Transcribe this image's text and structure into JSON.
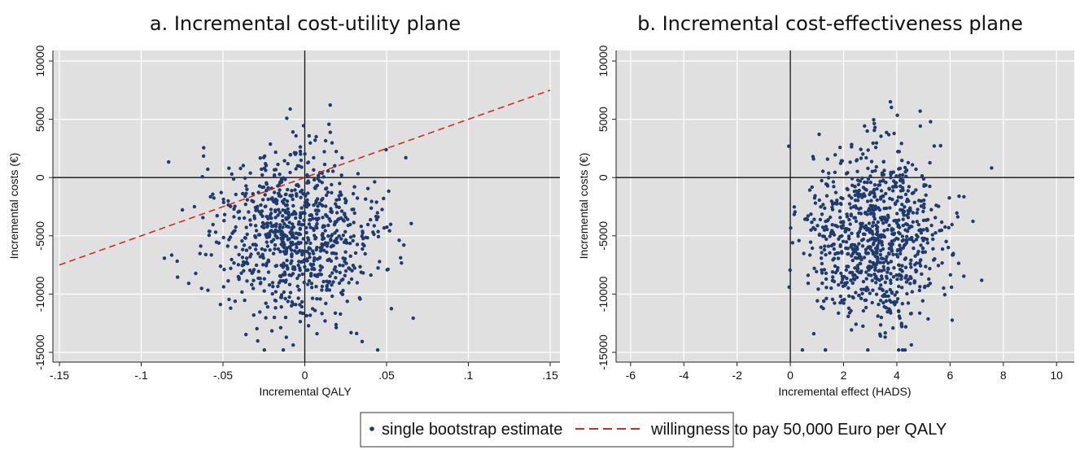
{
  "chart_data": [
    {
      "type": "scatter",
      "title": "a. Incremental cost-utility plane",
      "xlabel": "Incremental QALY",
      "ylabel": "Incremental costs (€)",
      "xlim": [
        -0.15,
        0.15
      ],
      "ylim": [
        -15000,
        10000
      ],
      "xticks": [
        -0.15,
        -0.1,
        -0.05,
        0,
        0.05,
        0.1,
        0.15
      ],
      "xtick_labels": [
        "-.15",
        "-.1",
        "-.05",
        "0",
        ".05",
        ".1",
        ".15"
      ],
      "yticks": [
        -15000,
        -10000,
        -5000,
        0,
        5000,
        10000
      ],
      "ytick_labels": [
        "-15000",
        "-10000",
        "-5000",
        "0",
        "5000",
        "10000"
      ],
      "grid": true,
      "series": [
        {
          "name": "single bootstrap estimate",
          "kind": "points",
          "color": "#1f3b6e",
          "n": 900,
          "distribution": {
            "x_mean": -0.006,
            "x_sd": 0.025,
            "y_mean": -5000,
            "y_sd": 3700
          }
        },
        {
          "name": "willingness to pay 50,000 Euro per QALY",
          "kind": "line",
          "color": "#d42a20",
          "points": [
            [
              -0.15,
              -7500
            ],
            [
              0.15,
              7500
            ]
          ]
        }
      ]
    },
    {
      "type": "scatter",
      "title": "b. Incremental cost-effectiveness plane",
      "xlabel": "Incremental effect (HADS)",
      "ylabel": "Incremental costs (€)",
      "xlim": [
        -6.3,
        10.3
      ],
      "ylim": [
        -15000,
        10000
      ],
      "xticks": [
        -6,
        -4,
        -2,
        0,
        2,
        4,
        6,
        8,
        10
      ],
      "xtick_labels": [
        "-6",
        "-4",
        "-2",
        "0",
        "2",
        "4",
        "6",
        "8",
        "10"
      ],
      "yticks": [
        -15000,
        -10000,
        -5000,
        0,
        5000,
        10000
      ],
      "ytick_labels": [
        "-15000",
        "-10000",
        "-5000",
        "0",
        "5000",
        "10000"
      ],
      "grid": true,
      "series": [
        {
          "name": "single bootstrap estimate",
          "kind": "points",
          "color": "#1f3b6e",
          "n": 900,
          "distribution": {
            "x_mean": 3.2,
            "x_sd": 1.3,
            "y_mean": -5000,
            "y_sd": 3700
          }
        }
      ]
    }
  ],
  "legend": {
    "placement": "bottom-center",
    "items": [
      {
        "label": "single bootstrap estimate",
        "marker": "point",
        "color": "#1f3b6e"
      },
      {
        "label": "willingness to pay 50,000 Euro per QALY",
        "marker": "dashed-line",
        "color": "#d42a20"
      }
    ]
  },
  "colors": {
    "plot_background": "#e0e0e0",
    "grid": "#ffffff",
    "point": "#1f3b6e",
    "wtp_line": "#d42a20"
  }
}
